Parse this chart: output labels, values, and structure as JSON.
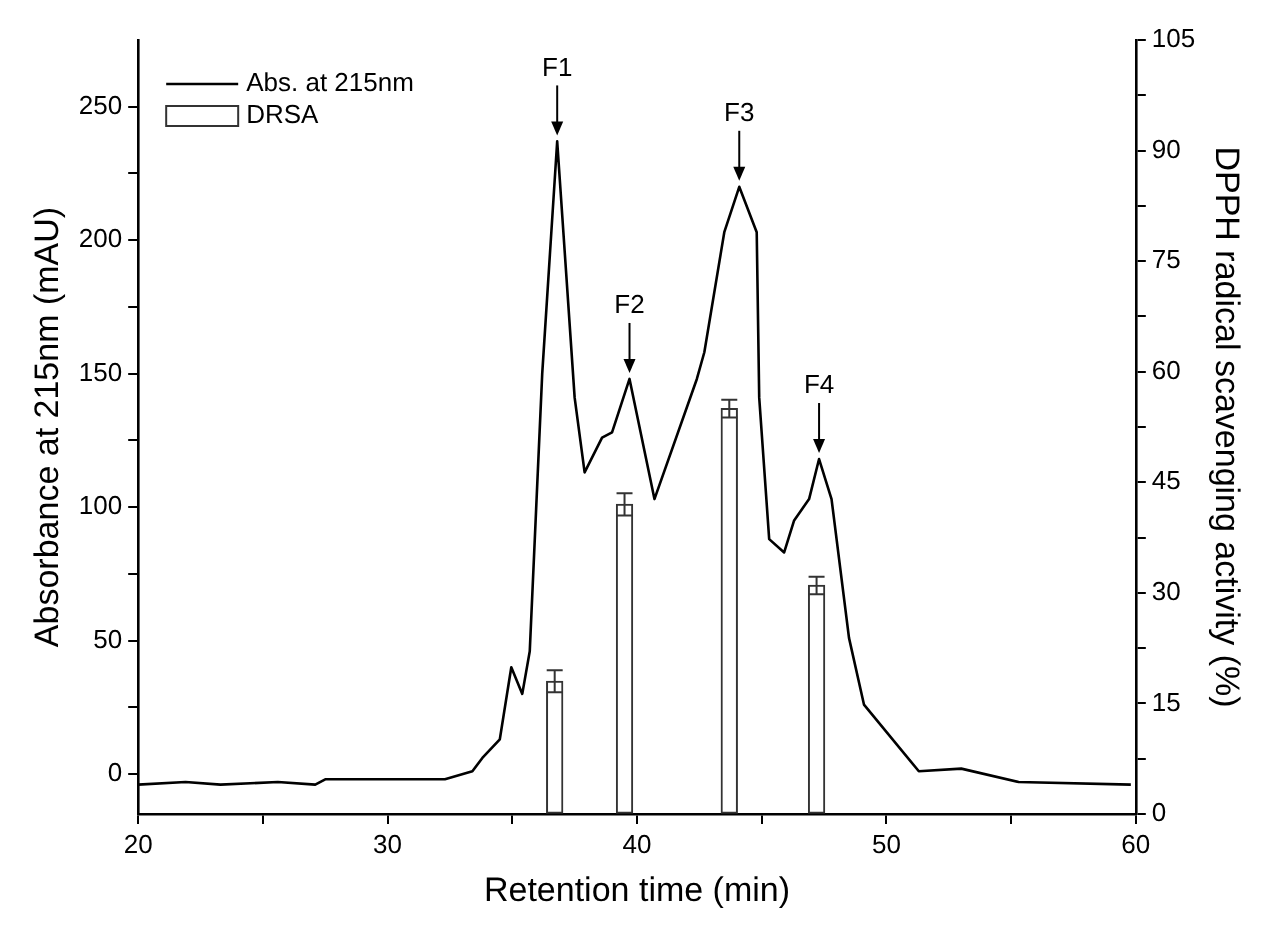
{
  "chart_data": {
    "type": "line",
    "xlabel": "Retention time (min)",
    "ylabel": "Absorbance at 215nm (mAU)",
    "y2label": "DPPH radical scavenging activity (%)",
    "xlim": [
      20,
      60
    ],
    "xticks": [
      20,
      {
        "value": 25,
        "label": null
      },
      30,
      {
        "value": 35,
        "label": null
      },
      40,
      {
        "value": 45,
        "label": null
      },
      50,
      {
        "value": 55,
        "label": null
      },
      60
    ],
    "ylim": [
      -15,
      275
    ],
    "yticks": [
      0,
      {
        "value": 25,
        "label": null
      },
      50,
      {
        "value": 75,
        "label": null
      },
      100,
      {
        "value": 125,
        "label": null
      },
      150,
      {
        "value": 175,
        "label": null
      },
      200,
      {
        "value": 225,
        "label": null
      },
      250
    ],
    "y2lim": [
      0,
      105
    ],
    "y2ticks": [
      0,
      {
        "value": 7.5,
        "label": null
      },
      15,
      {
        "value": 22.5,
        "label": null
      },
      30,
      {
        "value": 37.5,
        "label": null
      },
      45,
      {
        "value": 52.5,
        "label": null
      },
      60,
      {
        "value": 67.5,
        "label": null
      },
      75,
      {
        "value": 82.5,
        "label": null
      },
      90,
      {
        "value": 97.5,
        "label": null
      },
      105
    ],
    "grid": false,
    "legend": "top left",
    "marker": "none",
    "line_style": "solid",
    "series": [
      {
        "name": "Abs. at 215nm",
        "color": "#000000",
        "x": [
          20.0,
          21.9,
          23.3,
          25.6,
          27.1,
          27.5,
          32.3,
          33.4,
          33.8,
          34.5,
          34.96,
          35.4,
          35.7,
          36.2,
          36.8,
          37.5,
          37.9,
          38.6,
          39.0,
          39.7,
          40.7,
          42.4,
          42.7,
          43.5,
          44.1,
          44.8,
          44.9,
          45.3,
          45.9,
          46.3,
          46.9,
          47.3,
          47.8,
          48.5,
          49.1,
          51.3,
          53.0,
          55.3,
          59.8
        ],
        "values": [
          -4,
          -3,
          -4,
          -3,
          -4,
          -2,
          -2,
          1,
          6,
          13,
          40,
          30,
          46,
          150,
          237,
          141,
          113,
          126,
          128,
          148,
          103,
          148,
          158,
          203,
          220,
          203,
          141,
          88,
          83,
          95,
          103,
          118,
          103,
          51,
          26,
          1,
          2,
          -3,
          -4
        ]
      },
      {
        "name": "DRSA",
        "type": "bar",
        "axis": "y2",
        "color": "#333333",
        "x": [
          36.7,
          39.5,
          43.7,
          47.2
        ],
        "values": [
          18,
          42,
          55,
          31
        ],
        "errors": [
          1.5,
          1.5,
          1.2,
          1.2
        ]
      }
    ],
    "annotations": [
      {
        "text": "F1",
        "x": 36.8,
        "y": 237
      },
      {
        "text": "F2",
        "x": 39.7,
        "y": 148
      },
      {
        "text": "F3",
        "x": 44.1,
        "y": 220
      },
      {
        "text": "F4",
        "x": 47.3,
        "y": 118
      }
    ]
  }
}
